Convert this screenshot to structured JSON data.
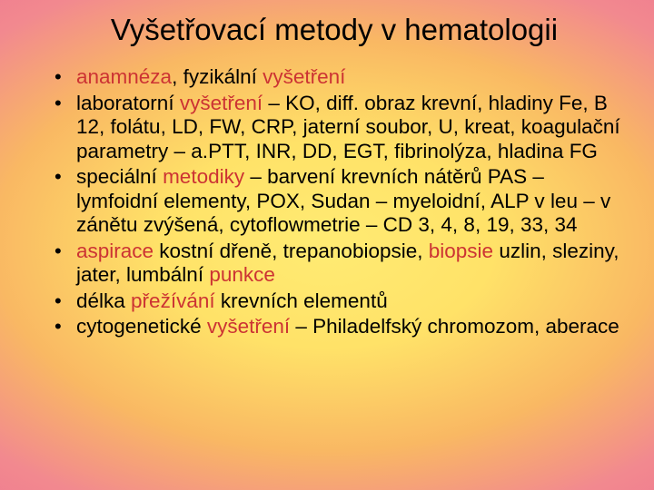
{
  "slide": {
    "title": "Vyšetřovací metody v hematologii",
    "bullets": [
      {
        "segments": [
          {
            "text": "anamnéza",
            "hl": true
          },
          {
            "text": ", fyzikální ",
            "hl": false
          },
          {
            "text": "vyšetření",
            "hl": true
          }
        ]
      },
      {
        "segments": [
          {
            "text": "laboratorní ",
            "hl": false
          },
          {
            "text": "vyšetření",
            "hl": true
          },
          {
            "text": " – KO, diff. obraz krevní, hladiny Fe, B 12, folátu, LD, FW, CRP, jaterní soubor, U, kreat, koagulační parametry – a.PTT, INR, DD, EGT, fibrinolýza, hladina FG",
            "hl": false
          }
        ]
      },
      {
        "segments": [
          {
            "text": "speciální ",
            "hl": false
          },
          {
            "text": "metodiky",
            "hl": true
          },
          {
            "text": " – barvení krevních nátěrů PAS – lymfoidní elementy, POX, Sudan – myeloidní, ALP v leu – v zánětu zvýšená, cytoflowmetrie – CD 3, 4, 8, 19, 33, 34",
            "hl": false
          }
        ]
      },
      {
        "segments": [
          {
            "text": "aspirace",
            "hl": true
          },
          {
            "text": " kostní dřeně, trepanobiopsie, ",
            "hl": false
          },
          {
            "text": "biopsie",
            "hl": true
          },
          {
            "text": " uzlin, sleziny, jater, lumbální ",
            "hl": false
          },
          {
            "text": "punkce",
            "hl": true
          }
        ]
      },
      {
        "segments": [
          {
            "text": "délka ",
            "hl": false
          },
          {
            "text": "přežívání",
            "hl": true
          },
          {
            "text": " krevních elementů",
            "hl": false
          }
        ]
      },
      {
        "segments": [
          {
            "text": "cytogenetické ",
            "hl": false
          },
          {
            "text": "vyšetření",
            "hl": true
          },
          {
            "text": " – Philadelfský chromozom, aberace",
            "hl": false
          }
        ]
      }
    ]
  },
  "style": {
    "title_fontsize": 33,
    "bullet_fontsize": 22.5,
    "highlight_color": "#cc3333",
    "text_color": "#000000",
    "background_gradient": [
      "#ffeb73",
      "#ffe268",
      "#f9b863",
      "#f2898f",
      "#ef7b90"
    ],
    "font_family": "Arial"
  }
}
